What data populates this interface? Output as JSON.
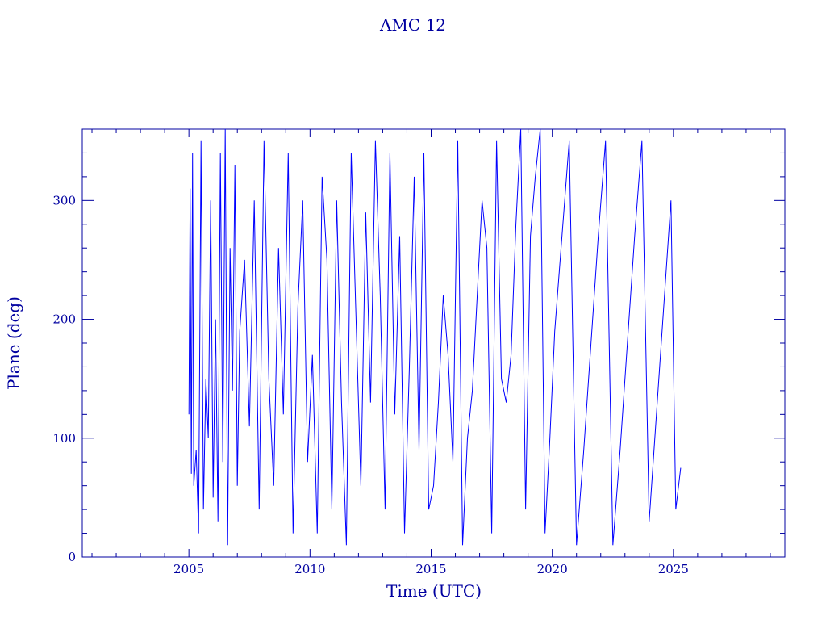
{
  "chart_data": {
    "type": "line",
    "title": "AMC 12",
    "xlabel": "Time (UTC)",
    "ylabel": "Plane (deg)",
    "xlim": [
      2000.6,
      2029.6
    ],
    "ylim": [
      0,
      360
    ],
    "x_ticks": [
      2005,
      2010,
      2015,
      2020,
      2025
    ],
    "x_tick_labels": [
      "2005",
      "2010",
      "2015",
      "2020",
      "2025"
    ],
    "y_ticks": [
      0,
      100,
      200,
      300
    ],
    "y_tick_labels": [
      "0",
      "100",
      "200",
      "300"
    ],
    "grid": false,
    "line_color": "#0000ff",
    "axis_color": "#0000a0",
    "series": [
      {
        "x": [
          2005.0,
          2005.05,
          2005.1,
          2005.15,
          2005.2,
          2005.3,
          2005.4,
          2005.5,
          2005.6,
          2005.7,
          2005.8,
          2005.9,
          2006.0,
          2006.1,
          2006.2,
          2006.3,
          2006.4,
          2006.5,
          2006.6,
          2006.7,
          2006.8,
          2006.9,
          2007.0,
          2007.1,
          2007.3,
          2007.5,
          2007.7,
          2007.9,
          2008.1,
          2008.3,
          2008.5,
          2008.7,
          2008.9,
          2009.1,
          2009.3,
          2009.5,
          2009.7,
          2009.9,
          2010.1,
          2010.3,
          2010.5,
          2010.7,
          2010.9,
          2011.1,
          2011.3,
          2011.5,
          2011.7,
          2011.9,
          2012.1,
          2012.3,
          2012.5,
          2012.7,
          2012.9,
          2013.1,
          2013.3,
          2013.5,
          2013.7,
          2013.9,
          2014.1,
          2014.3,
          2014.5,
          2014.7,
          2014.9,
          2015.1,
          2015.3,
          2015.5,
          2015.7,
          2015.9,
          2016.1,
          2016.3,
          2016.5,
          2016.7,
          2016.9,
          2017.1,
          2017.3,
          2017.5,
          2017.7,
          2017.9,
          2018.1,
          2018.3,
          2018.5,
          2018.7,
          2018.9,
          2019.1,
          2019.3,
          2019.5,
          2019.7,
          2019.9,
          2020.1,
          2020.4,
          2020.7,
          2021.0,
          2021.3,
          2021.6,
          2021.9,
          2022.2,
          2022.5,
          2022.8,
          2023.1,
          2023.4,
          2023.7,
          2024.0,
          2024.3,
          2024.6,
          2024.9,
          2025.1,
          2025.3
        ],
        "y": [
          120,
          310,
          70,
          340,
          60,
          90,
          20,
          350,
          40,
          150,
          100,
          300,
          50,
          200,
          30,
          340,
          80,
          360,
          10,
          260,
          140,
          330,
          60,
          190,
          250,
          110,
          300,
          40,
          350,
          150,
          60,
          260,
          120,
          340,
          20,
          210,
          300,
          80,
          170,
          20,
          320,
          250,
          40,
          300,
          130,
          10,
          340,
          200,
          60,
          290,
          130,
          350,
          220,
          40,
          340,
          120,
          270,
          20,
          160,
          320,
          90,
          340,
          40,
          60,
          130,
          220,
          170,
          80,
          350,
          10,
          100,
          140,
          220,
          300,
          260,
          20,
          350,
          150,
          130,
          170,
          280,
          360,
          40,
          270,
          320,
          360,
          20,
          100,
          190,
          270,
          350,
          10,
          90,
          180,
          270,
          350,
          10,
          90,
          180,
          270,
          350,
          30,
          120,
          210,
          300,
          40,
          75
        ]
      }
    ]
  }
}
